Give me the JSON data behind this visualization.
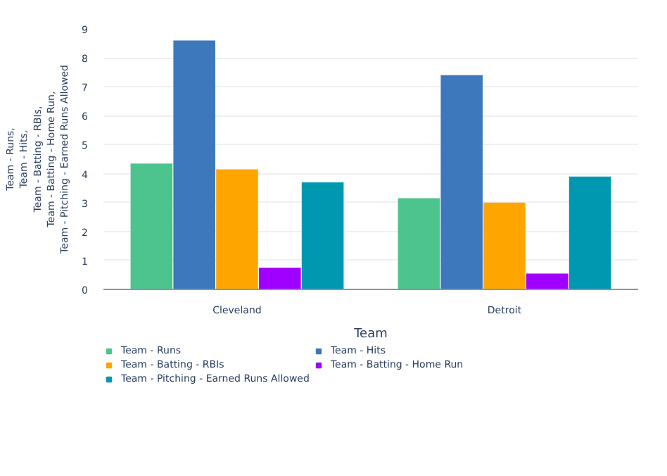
{
  "chart_data": {
    "type": "bar",
    "xlabel": "Team",
    "ylabel": "Team - Runs, Team - Hits, Team - Batting - RBIs, Team - Batting - Home Run, Team - Pitching - Earned Runs Allowed",
    "categories": [
      "Cleveland",
      "Detroit"
    ],
    "series": [
      {
        "name": "Team - Runs",
        "color": "#4dc48d",
        "values": [
          4.35,
          3.15
        ]
      },
      {
        "name": "Team - Hits",
        "color": "#3d78bd",
        "values": [
          8.6,
          7.4
        ]
      },
      {
        "name": "Team - Batting - RBIs",
        "color": "#ffa500",
        "values": [
          4.15,
          3.0
        ]
      },
      {
        "name": "Team - Batting - Home Run",
        "color": "#a000ff",
        "values": [
          0.75,
          0.55
        ]
      },
      {
        "name": "Team - Pitching - Earned Runs Allowed",
        "color": "#0098b0",
        "values": [
          3.7,
          3.9
        ]
      }
    ],
    "ylim": [
      0,
      9
    ],
    "yticks": [
      0,
      1,
      2,
      3,
      4,
      5,
      6,
      7,
      8,
      9
    ],
    "grid": "y",
    "legend": "bottom"
  }
}
